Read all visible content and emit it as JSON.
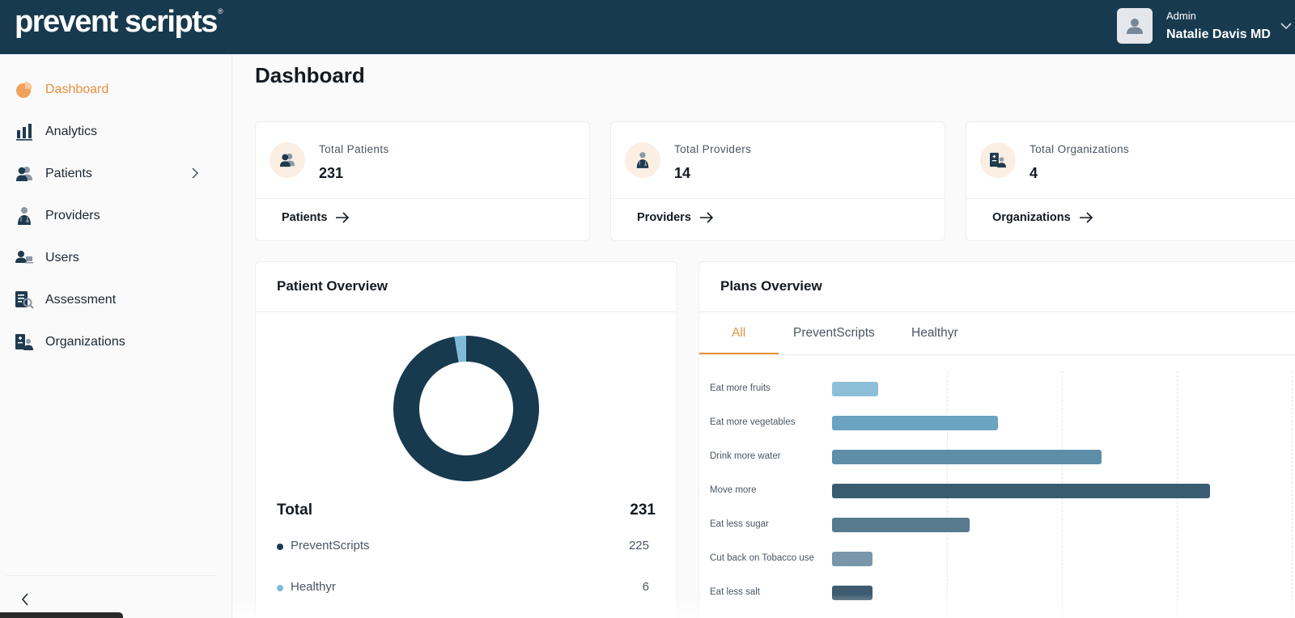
{
  "header": {
    "logo_text": "prevent scripts",
    "logo_mark": "®",
    "user_role": "Admin",
    "user_name": "Natalie Davis MD"
  },
  "sidebar": {
    "items": [
      {
        "label": "Dashboard",
        "icon": "pie-chart-icon",
        "active": true
      },
      {
        "label": "Analytics",
        "icon": "bar-chart-icon"
      },
      {
        "label": "Patients",
        "icon": "patients-icon",
        "has_submenu": true
      },
      {
        "label": "Providers",
        "icon": "doctor-icon"
      },
      {
        "label": "Users",
        "icon": "users-icon"
      },
      {
        "label": "Assessment",
        "icon": "clipboard-search-icon"
      },
      {
        "label": "Organizations",
        "icon": "organization-icon"
      }
    ]
  },
  "page": {
    "title": "Dashboard"
  },
  "stats": [
    {
      "label": "Total Patients",
      "value": "231",
      "link": "Patients",
      "icon": "patients-icon"
    },
    {
      "label": "Total Providers",
      "value": "14",
      "link": "Providers",
      "icon": "doctor-icon"
    },
    {
      "label": "Total Organizations",
      "value": "4",
      "link": "Organizations",
      "icon": "organization-icon"
    }
  ],
  "patient_overview": {
    "title": "Patient Overview",
    "total_label": "Total",
    "total_value": "231",
    "legend": [
      {
        "name": "PreventScripts",
        "value": "225",
        "color": "#173a4f"
      },
      {
        "name": "Healthyr",
        "value": "6",
        "color": "#7fbbd9"
      }
    ]
  },
  "plans_overview": {
    "title": "Plans Overview",
    "tabs": [
      "All",
      "PreventScripts",
      "Healthyr"
    ],
    "active_tab": "All"
  },
  "colors": {
    "header_bg": "#173a4f",
    "accent": "#e8913c",
    "navy": "#173a4f"
  },
  "chart_data": [
    {
      "type": "pie",
      "categories": [
        "PreventScripts",
        "Healthyr"
      ],
      "values": [
        225,
        6
      ],
      "colors": [
        "#173a4f",
        "#7fbbd9"
      ]
    },
    {
      "type": "bar",
      "orientation": "horizontal",
      "categories": [
        "Eat more fruits",
        "Eat more vegetables",
        "Drink more water",
        "Move more",
        "Eat less sugar",
        "Cut back on Tobacco use",
        "Eat less salt"
      ],
      "values": [
        4,
        14.5,
        23.5,
        33,
        12,
        3.5,
        3.5
      ],
      "colors": [
        "#8dbfd8",
        "#6aa4c1",
        "#5f8ea8",
        "#3a5c72",
        "#577a8f",
        "#7897aa",
        "#3e5c70"
      ],
      "grid": true
    }
  ]
}
